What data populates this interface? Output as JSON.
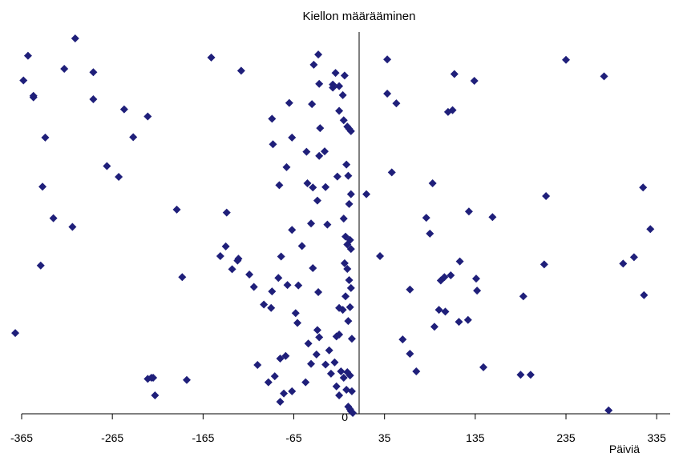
{
  "chart_data": {
    "type": "scatter",
    "title": "Kiellon määrääminen",
    "xlabel": "Päiviä",
    "ylabel": "",
    "xlim": [
      -365,
      350
    ],
    "ylim": [
      0,
      100
    ],
    "xticks": [
      -365,
      -265,
      -165,
      -65,
      35,
      135,
      235,
      335
    ],
    "ytick_labels": [
      "0"
    ],
    "grid": false,
    "legend": "none",
    "marker": "diamond",
    "color": "#1f1f7a",
    "points": [
      [
        -358,
        95.4
      ],
      [
        -306,
        100.0
      ],
      [
        -363,
        88.8
      ],
      [
        -318,
        91.9
      ],
      [
        -286,
        91.0
      ],
      [
        -352,
        84.3
      ],
      [
        -352,
        84.7
      ],
      [
        -156,
        94.9
      ],
      [
        -123,
        91.4
      ],
      [
        -70,
        82.8
      ],
      [
        -67,
        73.6
      ],
      [
        -81,
        60.9
      ],
      [
        -88,
        71.8
      ],
      [
        -51,
        69.8
      ],
      [
        -30,
        60.4
      ],
      [
        -139,
        53.6
      ],
      [
        -79,
        41.9
      ],
      [
        -82,
        36.2
      ],
      [
        -89,
        32.6
      ],
      [
        -9,
        40.1
      ],
      [
        -11,
        27.7
      ],
      [
        -73,
        65.7
      ],
      [
        -17,
        63.2
      ],
      [
        -39,
        56.8
      ],
      [
        -28,
        50.4
      ],
      [
        -38,
        32.4
      ],
      [
        -15,
        28.2
      ],
      [
        -15,
        21.1
      ],
      [
        -89,
        78.6
      ],
      [
        -60,
        34.2
      ],
      [
        -37,
        68.7
      ],
      [
        -36,
        76.1
      ],
      [
        -18,
        20.6
      ],
      [
        -22,
        87.7
      ],
      [
        -38,
        95.7
      ],
      [
        -19,
        90.8
      ],
      [
        -15,
        87.3
      ],
      [
        -11,
        84.9
      ],
      [
        -9,
        90.1
      ],
      [
        -15,
        80.7
      ],
      [
        -10,
        78.2
      ],
      [
        -6,
        76.5
      ],
      [
        -4,
        75.9
      ],
      [
        -2,
        75.3
      ],
      [
        -7,
        66.4
      ],
      [
        -5,
        63.4
      ],
      [
        -2,
        58.5
      ],
      [
        -4,
        55.9
      ],
      [
        -10,
        52.0
      ],
      [
        -8,
        47.2
      ],
      [
        -6,
        45.1
      ],
      [
        -3,
        46.3
      ],
      [
        -2,
        43.9
      ],
      [
        -6,
        38.6
      ],
      [
        -4,
        35.6
      ],
      [
        -2,
        33.5
      ],
      [
        -8,
        31.3
      ],
      [
        -3,
        28.4
      ],
      [
        -5,
        24.7
      ],
      [
        -1,
        20.0
      ],
      [
        -6,
        11.1
      ],
      [
        -3,
        10.2
      ],
      [
        -7,
        6.4
      ],
      [
        -1,
        6.0
      ],
      [
        -5,
        1.9
      ],
      [
        -3,
        1.2
      ],
      [
        -2,
        0.7
      ],
      [
        0,
        0.2
      ],
      [
        -13,
        11.3
      ],
      [
        -20,
        13.7
      ],
      [
        -26,
        16.9
      ],
      [
        -39,
        22.3
      ],
      [
        -49,
        18.7
      ],
      [
        -61,
        24.2
      ],
      [
        -63,
        26.8
      ],
      [
        -74,
        15.4
      ],
      [
        -80,
        14.7
      ],
      [
        -93,
        8.4
      ],
      [
        -86,
        10.0
      ],
      [
        -76,
        5.4
      ],
      [
        -67,
        6.0
      ],
      [
        -80,
        3.2
      ],
      [
        -52,
        8.4
      ],
      [
        -46,
        13.3
      ],
      [
        -40,
        15.8
      ],
      [
        -37,
        20.4
      ],
      [
        -30,
        13.1
      ],
      [
        -24,
        10.7
      ],
      [
        -18,
        7.3
      ],
      [
        -15,
        4.9
      ],
      [
        -10,
        9.6
      ],
      [
        -105,
        13.0
      ],
      [
        -114,
        37.1
      ],
      [
        -127,
        40.8
      ],
      [
        -140,
        44.6
      ],
      [
        -146,
        42.0
      ],
      [
        -188,
        36.4
      ],
      [
        -194,
        54.4
      ],
      [
        -218,
        4.9
      ],
      [
        -220,
        9.6
      ],
      [
        -222,
        9.6
      ],
      [
        -226,
        9.3
      ],
      [
        -183,
        9.0
      ],
      [
        -258,
        63.1
      ],
      [
        -286,
        83.8
      ],
      [
        -271,
        66.0
      ],
      [
        -309,
        49.8
      ],
      [
        -344,
        39.5
      ],
      [
        -372,
        21.5
      ],
      [
        -242,
        73.7
      ],
      [
        -226,
        79.2
      ],
      [
        -252,
        81.1
      ],
      [
        -339,
        73.6
      ],
      [
        -330,
        52.1
      ],
      [
        -342,
        60.5
      ],
      [
        -126,
        41.3
      ],
      [
        -133,
        38.5
      ],
      [
        -109,
        33.8
      ],
      [
        -98,
        29.1
      ],
      [
        -90,
        28.2
      ],
      [
        -72,
        34.3
      ],
      [
        -44,
        38.8
      ],
      [
        -56,
        44.7
      ],
      [
        -67,
        49.0
      ],
      [
        -46,
        50.7
      ],
      [
        -44,
        60.3
      ],
      [
        -50,
        61.4
      ],
      [
        -31,
        69.9
      ],
      [
        -45,
        82.5
      ],
      [
        -37,
        87.9
      ],
      [
        -43,
        93.0
      ],
      [
        -22,
        86.9
      ],
      [
        15,
        58.5
      ],
      [
        30,
        42.0
      ],
      [
        38,
        94.4
      ],
      [
        38,
        85.3
      ],
      [
        43,
        64.3
      ],
      [
        48,
        82.7
      ],
      [
        63,
        33.1
      ],
      [
        81,
        52.2
      ],
      [
        85,
        48.0
      ],
      [
        88,
        61.4
      ],
      [
        95,
        27.7
      ],
      [
        97,
        35.5
      ],
      [
        101,
        36.4
      ],
      [
        108,
        36.9
      ],
      [
        105,
        80.4
      ],
      [
        110,
        80.9
      ],
      [
        112,
        90.5
      ],
      [
        118,
        40.6
      ],
      [
        128,
        53.9
      ],
      [
        136,
        36.0
      ],
      [
        134,
        88.7
      ],
      [
        144,
        12.4
      ],
      [
        185,
        10.4
      ],
      [
        196,
        10.4
      ],
      [
        211,
        39.8
      ],
      [
        235,
        94.3
      ],
      [
        188,
        31.3
      ],
      [
        213,
        58.0
      ],
      [
        277,
        89.9
      ],
      [
        282,
        0.9
      ],
      [
        298,
        40.0
      ],
      [
        310,
        41.7
      ],
      [
        320,
        60.3
      ],
      [
        321,
        31.6
      ],
      [
        328,
        49.2
      ],
      [
        55,
        19.8
      ],
      [
        63,
        16.0
      ],
      [
        70,
        11.3
      ],
      [
        90,
        23.2
      ],
      [
        102,
        27.2
      ],
      [
        117,
        24.5
      ],
      [
        127,
        25.0
      ],
      [
        137,
        32.8
      ],
      [
        154,
        52.4
      ]
    ]
  }
}
